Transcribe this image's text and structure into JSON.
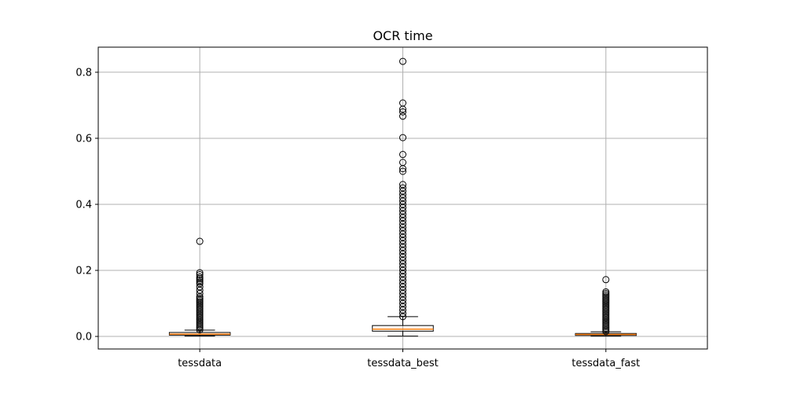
{
  "chart_data": {
    "type": "box",
    "title": "OCR time",
    "xlabel": "",
    "ylabel": "",
    "categories": [
      "tessdata",
      "tessdata_best",
      "tessdata_fast"
    ],
    "ylim": [
      -0.038,
      0.876
    ],
    "y_ticks": [
      0.0,
      0.2,
      0.4,
      0.6,
      0.8
    ],
    "y_tick_labels": [
      "0.0",
      "0.2",
      "0.4",
      "0.6",
      "0.8"
    ],
    "grid": true,
    "colors": {
      "median": "#ff7f0e",
      "box": "#000000",
      "grid": "#b0b0b0"
    },
    "series": [
      {
        "category": "tessdata",
        "whisker_low": 0.001,
        "q1": 0.004,
        "median": 0.007,
        "q3": 0.012,
        "whisker_high": 0.019,
        "outliers": [
          0.02,
          0.025,
          0.03,
          0.035,
          0.04,
          0.045,
          0.05,
          0.055,
          0.06,
          0.065,
          0.07,
          0.075,
          0.08,
          0.085,
          0.09,
          0.095,
          0.1,
          0.105,
          0.11,
          0.115,
          0.12,
          0.13,
          0.14,
          0.15,
          0.16,
          0.165,
          0.17,
          0.175,
          0.18,
          0.187,
          0.193,
          0.288
        ]
      },
      {
        "category": "tessdata_best",
        "whisker_low": 0.001,
        "q1": 0.016,
        "median": 0.022,
        "q3": 0.033,
        "whisker_high": 0.06,
        "outliers": [
          0.06,
          0.07,
          0.08,
          0.09,
          0.1,
          0.11,
          0.12,
          0.13,
          0.14,
          0.15,
          0.16,
          0.17,
          0.18,
          0.19,
          0.2,
          0.21,
          0.22,
          0.23,
          0.24,
          0.25,
          0.26,
          0.27,
          0.28,
          0.29,
          0.3,
          0.31,
          0.32,
          0.33,
          0.34,
          0.35,
          0.36,
          0.37,
          0.38,
          0.39,
          0.4,
          0.41,
          0.42,
          0.43,
          0.44,
          0.45,
          0.46,
          0.5,
          0.508,
          0.527,
          0.551,
          0.602,
          0.667,
          0.68,
          0.688,
          0.707,
          0.833
        ]
      },
      {
        "category": "tessdata_fast",
        "whisker_low": 0.001,
        "q1": 0.003,
        "median": 0.006,
        "q3": 0.009,
        "whisker_high": 0.014,
        "outliers": [
          0.015,
          0.02,
          0.025,
          0.03,
          0.035,
          0.04,
          0.045,
          0.05,
          0.055,
          0.06,
          0.065,
          0.07,
          0.075,
          0.08,
          0.085,
          0.09,
          0.095,
          0.1,
          0.105,
          0.11,
          0.115,
          0.12,
          0.125,
          0.13,
          0.135,
          0.172
        ]
      }
    ]
  }
}
